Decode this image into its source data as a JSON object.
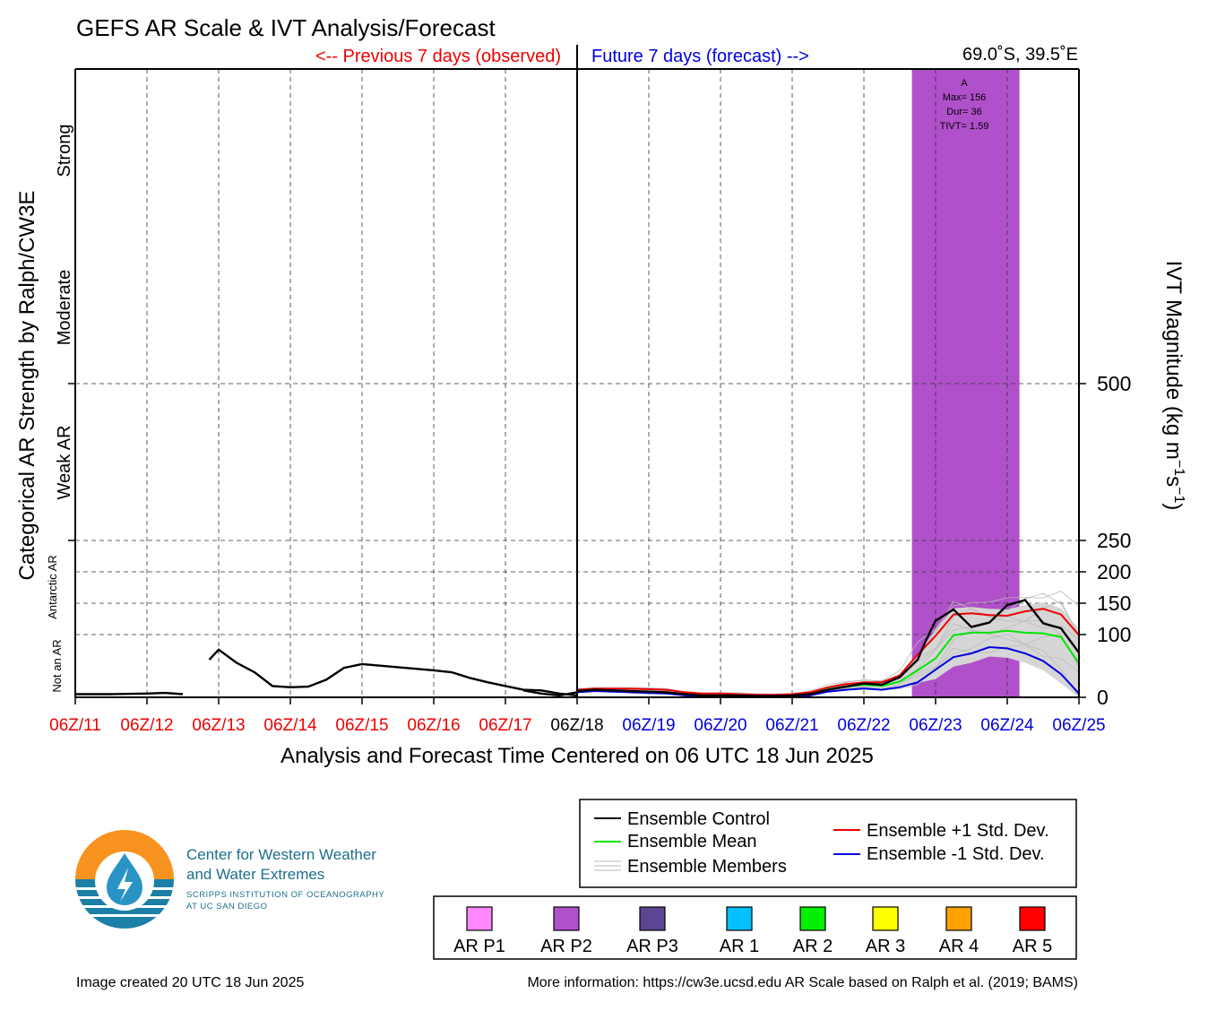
{
  "chart_data": {
    "type": "line",
    "title": "GEFS AR Scale & IVT Analysis/Forecast",
    "location": "69.0˚S, 39.5˚E",
    "observed_label": "<-- Previous 7 days (observed)",
    "forecast_label": "Future 7 days (forecast) -->",
    "xlabel": "Analysis and Forecast Time Centered on 06 UTC 18 Jun 2025",
    "ylabel_left": "Categorical AR Strength by Ralph/CW3E",
    "ylabel_right": "IVT Magnitude (kg m",
    "ylabel_right_sup1": "−1",
    "ylabel_right_mid": "s",
    "ylabel_right_sup2": "−1",
    "ylabel_right_end": ")",
    "x_ticks": [
      "06Z/11",
      "06Z/12",
      "06Z/13",
      "06Z/14",
      "06Z/15",
      "06Z/16",
      "06Z/17",
      "06Z/18",
      "06Z/19",
      "06Z/20",
      "06Z/21",
      "06Z/22",
      "06Z/23",
      "06Z/24",
      "06Z/25"
    ],
    "x_unit": "days since 06Z/11",
    "xlim": [
      0,
      14
    ],
    "y_ticks": [
      0,
      100,
      150,
      200,
      250,
      500
    ],
    "categories_left": [
      "Not an AR",
      "Antarctic AR",
      "Weak AR",
      "Moderate",
      "Strong"
    ],
    "grid": true,
    "ar_event": {
      "category": "AR P2",
      "color": "#b150cb",
      "start": 11.67,
      "end": 13.17,
      "label": "A",
      "max": "Max= 156",
      "dur": "Dur= 36",
      "tivt": "TIVT= 1.59"
    },
    "series": [
      {
        "name": "Ensemble Control (observed)",
        "color": "#000000",
        "x": [
          0,
          0.5,
          1,
          1.25,
          1.5
        ],
        "y": [
          5,
          5,
          6,
          7,
          5
        ]
      },
      {
        "name": "Ensemble Control (observed)",
        "color": "#000000",
        "x": [
          1.87,
          2,
          2.25,
          2.5,
          2.75,
          3,
          3.25,
          3.5,
          3.75,
          4,
          4.5,
          5,
          5.25,
          5.5,
          5.75,
          6,
          6.25,
          6.5,
          6.75,
          7
        ],
        "y": [
          60,
          76,
          55,
          40,
          18,
          16,
          17,
          28,
          47,
          53,
          48,
          43,
          40,
          31,
          24,
          18,
          12,
          11,
          6,
          3
        ]
      },
      {
        "name": "Ensemble Control (observed)",
        "color": "#000000",
        "x": [
          6.25,
          6.5,
          6.75,
          7
        ],
        "y": [
          11,
          6,
          3,
          8
        ]
      },
      {
        "name": "Ensemble Control",
        "color": "#000000",
        "x": [
          7,
          7.25,
          7.5,
          7.75,
          8,
          8.25,
          8.5,
          8.75,
          9,
          9.25,
          9.5,
          9.75,
          10,
          10.25,
          10.5,
          10.75,
          11,
          11.25,
          11.5,
          11.75,
          11.87,
          12,
          12.25,
          12.5,
          12.75,
          13,
          13.25,
          13.5,
          13.75,
          14
        ],
        "y": [
          10,
          12,
          11,
          10,
          9,
          8,
          5,
          3,
          3,
          3,
          2,
          2,
          3,
          5,
          12,
          17,
          22,
          20,
          32,
          60,
          92,
          122,
          140,
          112,
          119,
          147,
          155,
          118,
          110,
          71
        ]
      },
      {
        "name": "Ensemble Mean",
        "color": "#00e600",
        "x": [
          7,
          7.25,
          7.5,
          7.75,
          8,
          8.25,
          8.5,
          8.75,
          9,
          9.25,
          9.5,
          9.75,
          10,
          10.25,
          10.5,
          10.75,
          11,
          11.25,
          11.5,
          11.75,
          12,
          12.25,
          12.5,
          12.75,
          13,
          13.25,
          13.5,
          13.75,
          14
        ],
        "y": [
          10,
          12,
          11,
          10,
          9,
          8,
          5,
          3,
          3,
          3,
          2,
          2,
          3,
          6,
          13,
          17,
          20,
          18,
          25,
          43,
          62,
          99,
          103,
          103,
          106,
          103,
          102,
          96,
          54
        ]
      },
      {
        "name": "Ensemble +1 Std. Dev.",
        "color": "#ee0000",
        "x": [
          7,
          7.25,
          7.5,
          7.75,
          8,
          8.25,
          8.5,
          8.75,
          9,
          9.25,
          9.5,
          9.75,
          10,
          10.25,
          10.5,
          10.75,
          11,
          11.25,
          11.5,
          11.75,
          12,
          12.25,
          12.5,
          12.75,
          13,
          13.25,
          13.5,
          13.75,
          14
        ],
        "y": [
          12,
          14,
          14,
          14,
          13,
          12,
          8,
          6,
          6,
          5,
          4,
          4,
          5,
          8,
          16,
          21,
          24,
          24,
          35,
          68,
          98,
          132,
          134,
          131,
          130,
          137,
          141,
          132,
          99
        ]
      },
      {
        "name": "Ensemble -1 Std. Dev.",
        "color": "#0000dd",
        "x": [
          7,
          7.25,
          7.5,
          7.75,
          8,
          8.25,
          8.5,
          8.75,
          9,
          9.25,
          9.5,
          9.75,
          10,
          10.25,
          10.5,
          10.75,
          11,
          11.25,
          11.5,
          11.75,
          12,
          12.25,
          12.5,
          12.75,
          13,
          13.25,
          13.5,
          13.75,
          14
        ],
        "y": [
          8,
          10,
          9,
          8,
          7,
          6,
          3,
          1,
          1,
          1,
          0,
          0,
          1,
          3,
          9,
          12,
          14,
          12,
          16,
          24,
          44,
          64,
          70,
          80,
          78,
          70,
          58,
          37,
          6
        ]
      }
    ],
    "ensemble_members_color": "#bbbbbb",
    "legend": [
      {
        "label": "Ensemble Control",
        "color": "#000000"
      },
      {
        "label": "Ensemble Mean",
        "color": "#00e600"
      },
      {
        "label": "Ensemble Members",
        "color": "#bbbbbb"
      },
      {
        "label": "Ensemble +1 Std. Dev.",
        "color": "#ee0000"
      },
      {
        "label": "Ensemble -1 Std. Dev.",
        "color": "#0000dd"
      }
    ],
    "ar_categories": [
      {
        "label": "AR P1",
        "color": "#ff88ff"
      },
      {
        "label": "AR P2",
        "color": "#b150cb"
      },
      {
        "label": "AR P3",
        "color": "#5c4592"
      },
      {
        "label": "AR 1",
        "color": "#00c0ff"
      },
      {
        "label": "AR 2",
        "color": "#00f000"
      },
      {
        "label": "AR 3",
        "color": "#ffff00"
      },
      {
        "label": "AR 4",
        "color": "#ffa200"
      },
      {
        "label": "AR 5",
        "color": "#ff0000"
      }
    ]
  },
  "logo": {
    "line1": "Center for Western Weather",
    "line2": "and Water Extremes",
    "line3": "SCRIPPS INSTITUTION OF OCEANOGRAPHY",
    "line4": "AT UC SAN DIEGO"
  },
  "footer": {
    "created": "Image created 20 UTC 18 Jun 2025",
    "info": "More information: https://cw3e.ucsd.edu AR Scale based on Ralph et al. (2019; BAMS)"
  }
}
